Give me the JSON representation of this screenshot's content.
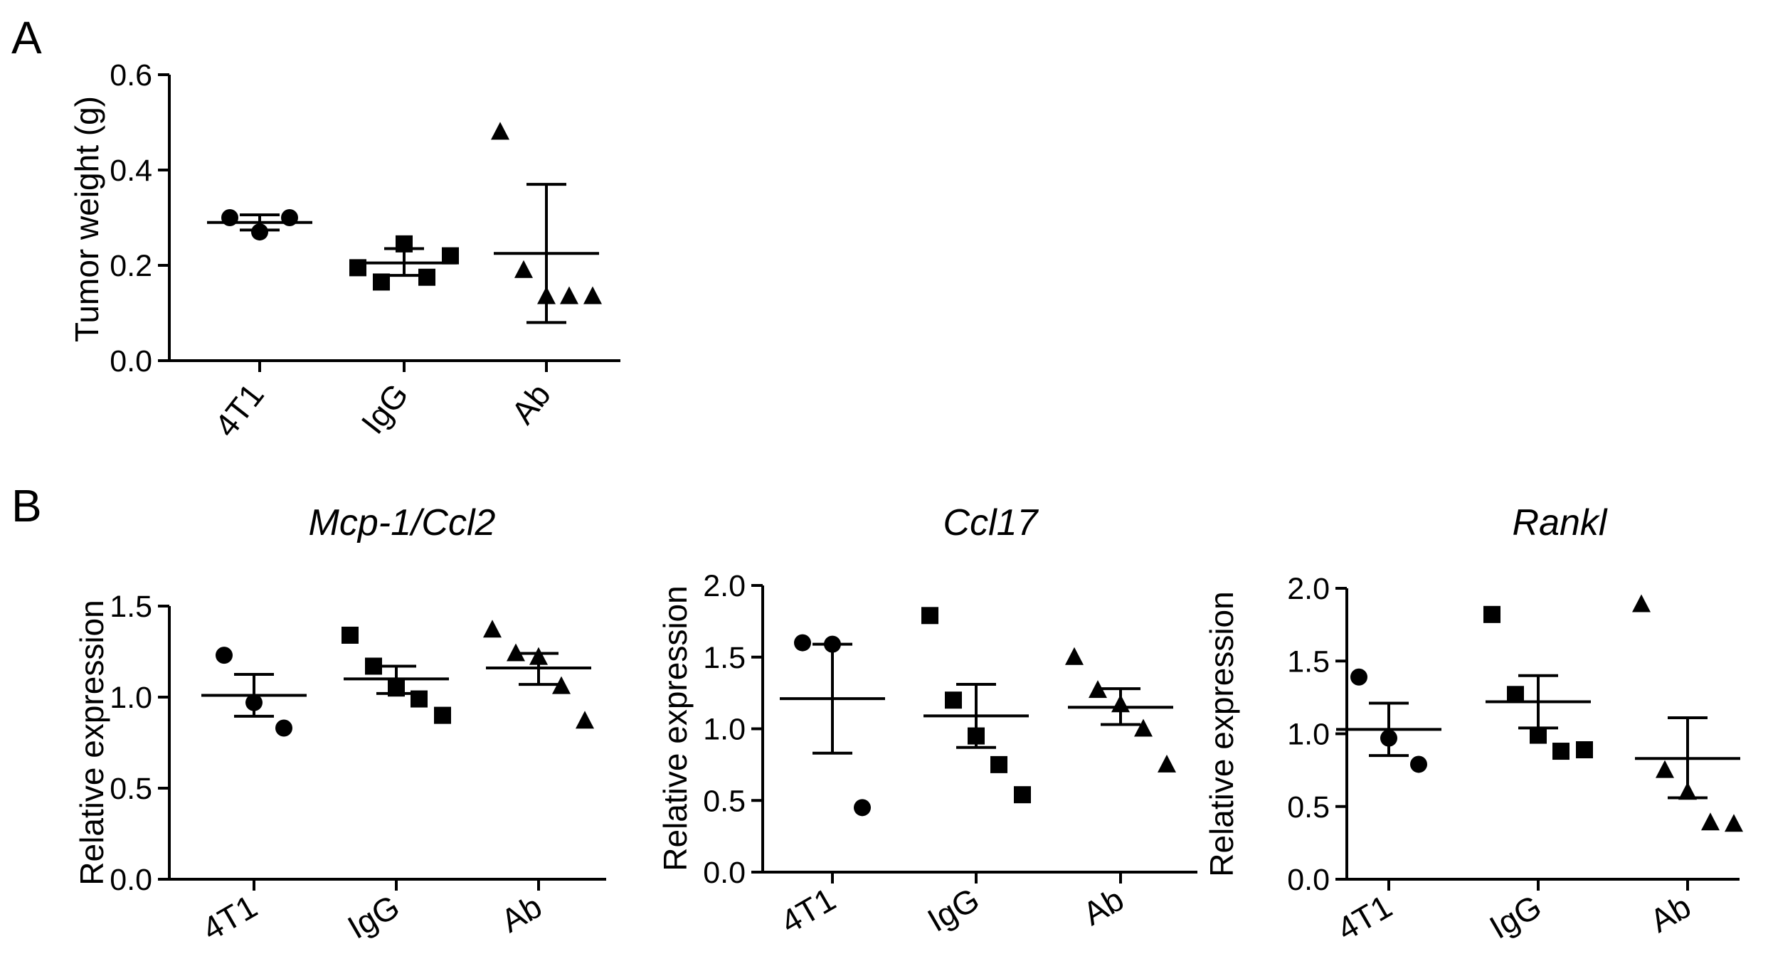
{
  "panels": [
    {
      "label": "A"
    },
    {
      "label": "B"
    }
  ],
  "chart_data": [
    {
      "type": "scatter",
      "panel": "A",
      "title": "",
      "xlabel": "",
      "ylabel": "Tumor weight (g)",
      "ylim": [
        0,
        0.6
      ],
      "yticks": [
        0,
        0.2,
        0.4,
        0.6
      ],
      "ytick_labels": [
        "0.0",
        "0.2",
        "0.4",
        "0.6"
      ],
      "categories": [
        "4T1",
        "IgG",
        "Ab"
      ],
      "markers": [
        "circle",
        "square",
        "triangle"
      ],
      "groups": [
        {
          "name": "4T1",
          "points": [
            0.3,
            0.27,
            0.3
          ],
          "mean": 0.29,
          "err_low": 0.274,
          "err_high": 0.306
        },
        {
          "name": "IgG",
          "points": [
            0.195,
            0.165,
            0.245,
            0.175,
            0.22
          ],
          "mean": 0.205,
          "err_low": 0.179,
          "err_high": 0.235
        },
        {
          "name": "Ab",
          "points": [
            0.48,
            0.19,
            0.135,
            0.135,
            0.135
          ],
          "mean": 0.225,
          "err_low": 0.08,
          "err_high": 0.37
        }
      ]
    },
    {
      "type": "scatter",
      "panel": "B",
      "title": "Mcp-1/Ccl2",
      "xlabel": "",
      "ylabel": "Relative expression",
      "ylim": [
        0,
        1.5
      ],
      "yticks": [
        0,
        0.5,
        1.0,
        1.5
      ],
      "ytick_labels": [
        "0.0",
        "0.5",
        "1.0",
        "1.5"
      ],
      "categories": [
        "4T1",
        "IgG",
        "Ab"
      ],
      "markers": [
        "circle",
        "square",
        "triangle"
      ],
      "groups": [
        {
          "name": "4T1",
          "points": [
            1.23,
            0.97,
            0.83
          ],
          "mean": 1.01,
          "err_low": 0.895,
          "err_high": 1.125
        },
        {
          "name": "IgG",
          "points": [
            1.34,
            1.17,
            1.05,
            0.99,
            0.9
          ],
          "mean": 1.1,
          "err_low": 1.02,
          "err_high": 1.17
        },
        {
          "name": "Ab",
          "points": [
            1.37,
            1.24,
            1.22,
            1.06,
            0.87
          ],
          "mean": 1.16,
          "err_low": 1.07,
          "err_high": 1.24
        }
      ]
    },
    {
      "type": "scatter",
      "panel": "B",
      "title": "Ccl17",
      "xlabel": "",
      "ylabel": "Relative expression",
      "ylim": [
        0,
        2.0
      ],
      "yticks": [
        0,
        0.5,
        1.0,
        1.5,
        2.0
      ],
      "ytick_labels": [
        "0.0",
        "0.5",
        "1.0",
        "1.5",
        "2.0"
      ],
      "categories": [
        "4T1",
        "IgG",
        "Ab"
      ],
      "markers": [
        "circle",
        "square",
        "triangle"
      ],
      "groups": [
        {
          "name": "4T1",
          "points": [
            1.6,
            1.59,
            0.45
          ],
          "mean": 1.21,
          "err_low": 0.83,
          "err_high": 1.59
        },
        {
          "name": "IgG",
          "points": [
            1.79,
            1.2,
            0.95,
            0.75,
            0.54
          ],
          "mean": 1.09,
          "err_low": 0.87,
          "err_high": 1.31
        },
        {
          "name": "Ab",
          "points": [
            1.5,
            1.27,
            1.17,
            1.0,
            0.75
          ],
          "mean": 1.15,
          "err_low": 1.03,
          "err_high": 1.28
        }
      ]
    },
    {
      "type": "scatter",
      "panel": "B",
      "title": "Rankl",
      "xlabel": "",
      "ylabel": "Relative expression",
      "ylim": [
        0,
        2.0
      ],
      "yticks": [
        0,
        0.5,
        1.0,
        1.5,
        2.0
      ],
      "ytick_labels": [
        "0.0",
        "0.5",
        "1.0",
        "1.5",
        "2.0"
      ],
      "categories": [
        "4T1",
        "IgG",
        "Ab"
      ],
      "markers": [
        "circle",
        "square",
        "triangle"
      ],
      "groups": [
        {
          "name": "4T1",
          "points": [
            1.39,
            0.97,
            0.79
          ],
          "mean": 1.03,
          "err_low": 0.85,
          "err_high": 1.21
        },
        {
          "name": "IgG",
          "points": [
            1.82,
            1.27,
            0.99,
            0.88,
            0.89
          ],
          "mean": 1.22,
          "err_low": 1.04,
          "err_high": 1.4
        },
        {
          "name": "Ab",
          "points": [
            1.89,
            0.75,
            0.6,
            0.39,
            0.38
          ],
          "mean": 0.83,
          "err_low": 0.56,
          "err_high": 1.11
        }
      ]
    }
  ]
}
